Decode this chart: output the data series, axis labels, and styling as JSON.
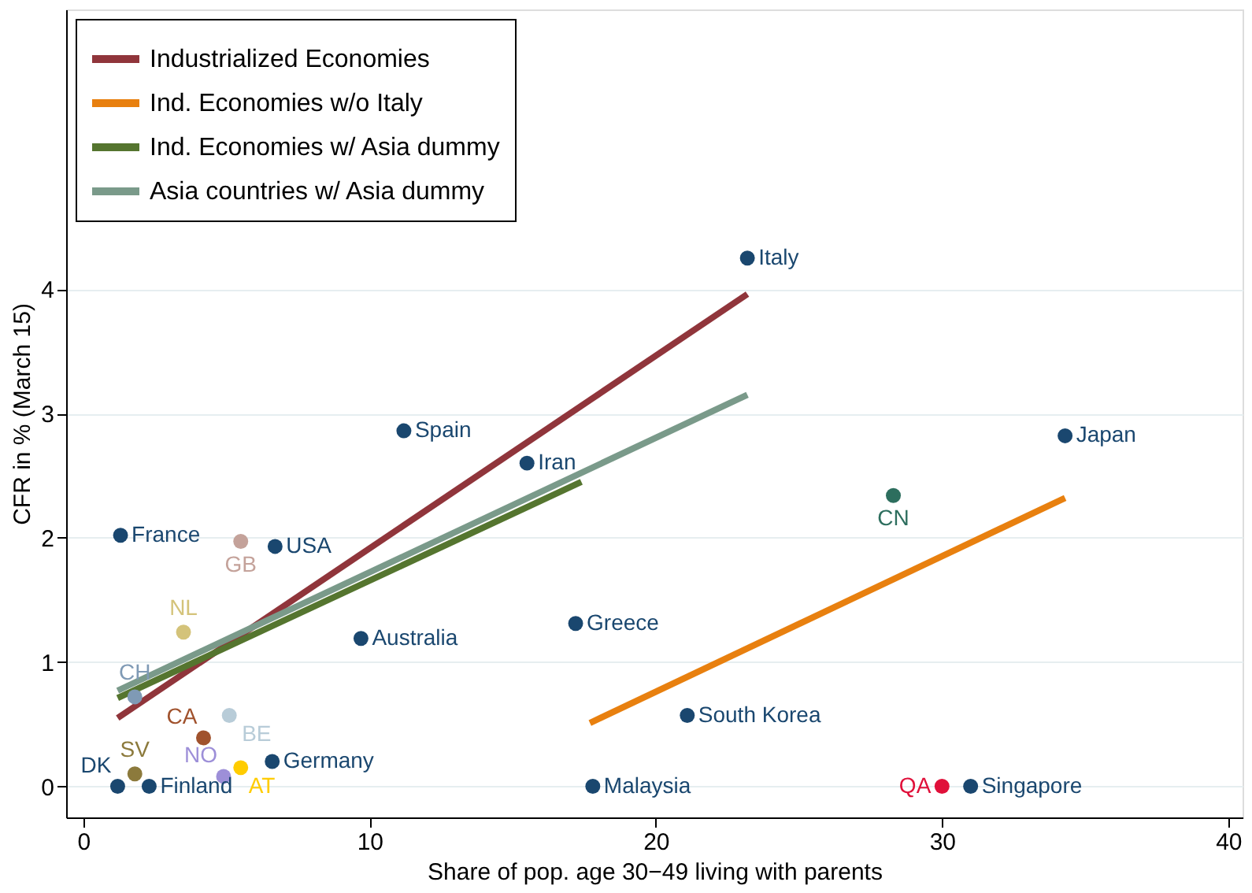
{
  "chart_data": {
    "type": "scatter",
    "xlabel": "Share of pop. age 30−49 living with parents",
    "ylabel": "CFR in % (March 15)",
    "xlim": [
      -0.6,
      40.5
    ],
    "ylim": [
      -0.25,
      6.25
    ],
    "xticks": [
      0,
      10,
      20,
      30,
      40
    ],
    "yticks": [
      0,
      1,
      2,
      3,
      4
    ],
    "grid": "y",
    "legend": "top left",
    "series": [
      {
        "marker": "circle",
        "x": [
          23.2,
          11.2,
          15.5,
          34.3,
          28.3,
          1.3,
          5.5,
          6.7,
          3.5,
          9.7,
          17.2,
          1.8,
          4.2,
          5.1,
          21.1,
          6.6,
          1.8,
          4.9,
          5.5,
          1.2,
          2.3,
          17.8,
          30.0,
          31.0
        ],
        "values": [
          4.25,
          2.86,
          2.6,
          2.82,
          2.34,
          2.02,
          1.97,
          1.93,
          1.24,
          1.19,
          1.31,
          0.72,
          0.39,
          0.57,
          0.57,
          0.2,
          0.1,
          0.08,
          0.15,
          0,
          0,
          0,
          0,
          0
        ],
        "colors": [
          "#1a476f",
          "#1a476f",
          "#1a476f",
          "#1a476f",
          "#2d6e5e",
          "#1a476f",
          "#c4a29a",
          "#1a476f",
          "#d4c37a",
          "#1a476f",
          "#1a476f",
          "#7f9ab5",
          "#a0522d",
          "#b8ccd8",
          "#1a476f",
          "#1a476f",
          "#8c7a3c",
          "#9d8fd8",
          "#ffcc00",
          "#1a476f",
          "#1a476f",
          "#1a476f",
          "#e0103a",
          "#1a476f"
        ]
      },
      {
        "type": "line",
        "name": "Industrialized Economies",
        "color": "#90353b",
        "x": [
          1.2,
          23.2
        ],
        "values": [
          0.55,
          3.96
        ]
      },
      {
        "type": "line",
        "name": "Ind. Economies w/o Italy",
        "color": "#e8800f",
        "x": [
          17.7,
          34.3
        ],
        "values": [
          0.51,
          2.32
        ]
      },
      {
        "type": "line",
        "name": "Ind. Economies w/ Asia dummy",
        "color": "#55752f",
        "x": [
          1.2,
          17.4
        ],
        "values": [
          0.71,
          2.45
        ]
      },
      {
        "type": "line",
        "name": "Asia countries w/ Asia dummy",
        "color": "#7a9a8a",
        "x": [
          1.2,
          23.2
        ],
        "values": [
          0.77,
          3.15
        ]
      }
    ],
    "annotations": [
      {
        "text": "Italy",
        "x": 23.2,
        "y": 4.25
      },
      {
        "text": "Spain",
        "x": 11.2,
        "y": 2.86
      },
      {
        "text": "Iran",
        "x": 15.5,
        "y": 2.6
      },
      {
        "text": "Japan",
        "x": 34.3,
        "y": 2.82
      },
      {
        "text": "CN",
        "x": 28.3,
        "y": 2.34
      },
      {
        "text": "France",
        "x": 1.3,
        "y": 2.02
      },
      {
        "text": "GB",
        "x": 5.5,
        "y": 1.97
      },
      {
        "text": "USA",
        "x": 6.7,
        "y": 1.93
      },
      {
        "text": "NL",
        "x": 3.5,
        "y": 1.24
      },
      {
        "text": "Australia",
        "x": 9.7,
        "y": 1.19
      },
      {
        "text": "Greece",
        "x": 17.2,
        "y": 1.31
      },
      {
        "text": "CH",
        "x": 1.8,
        "y": 0.72
      },
      {
        "text": "CA",
        "x": 4.2,
        "y": 0.39
      },
      {
        "text": "BE",
        "x": 5.1,
        "y": 0.57
      },
      {
        "text": "South Korea",
        "x": 21.1,
        "y": 0.57
      },
      {
        "text": "Germany",
        "x": 6.6,
        "y": 0.2
      },
      {
        "text": "SV",
        "x": 1.8,
        "y": 0.1
      },
      {
        "text": "NO",
        "x": 4.9,
        "y": 0.08
      },
      {
        "text": "AT",
        "x": 5.5,
        "y": 0.15
      },
      {
        "text": "DK",
        "x": 1.2,
        "y": 0
      },
      {
        "text": "Finland",
        "x": 2.3,
        "y": 0
      },
      {
        "text": "Malaysia",
        "x": 17.8,
        "y": 0
      },
      {
        "text": "QA",
        "x": 30.0,
        "y": 0
      },
      {
        "text": "Singapore",
        "x": 31.0,
        "y": 0
      }
    ]
  }
}
